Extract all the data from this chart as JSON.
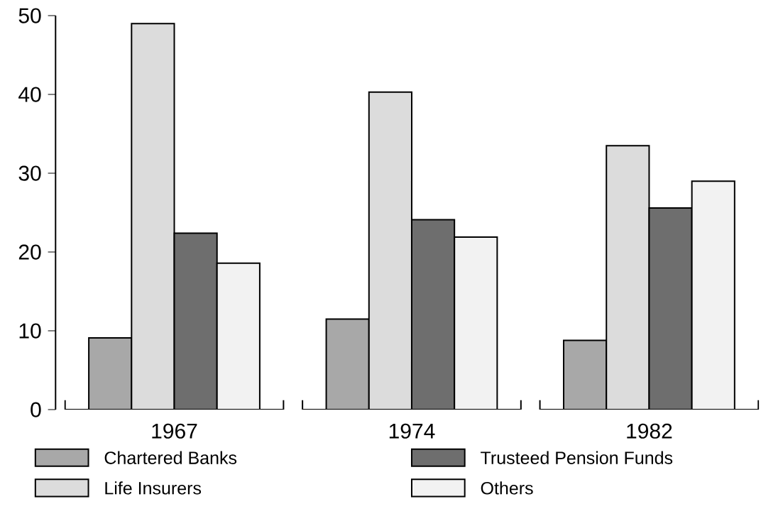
{
  "chart_data": {
    "type": "bar",
    "categories": [
      "1967",
      "1974",
      "1982"
    ],
    "series": [
      {
        "name": "Chartered Banks",
        "color": "#a8a8a8",
        "values": [
          9.1,
          11.5,
          8.8
        ]
      },
      {
        "name": "Life Insurers",
        "color": "#dcdcdc",
        "values": [
          49.0,
          40.3,
          33.5
        ]
      },
      {
        "name": "Trusteed Pension Funds",
        "color": "#6e6e6e",
        "values": [
          22.4,
          24.1,
          25.6
        ]
      },
      {
        "name": "Others",
        "color": "#f2f2f2",
        "values": [
          18.6,
          21.9,
          29.0
        ]
      }
    ],
    "ylim": [
      0,
      50
    ],
    "yticks": [
      0,
      10,
      20,
      30,
      40,
      50
    ],
    "legend": "bottom"
  }
}
